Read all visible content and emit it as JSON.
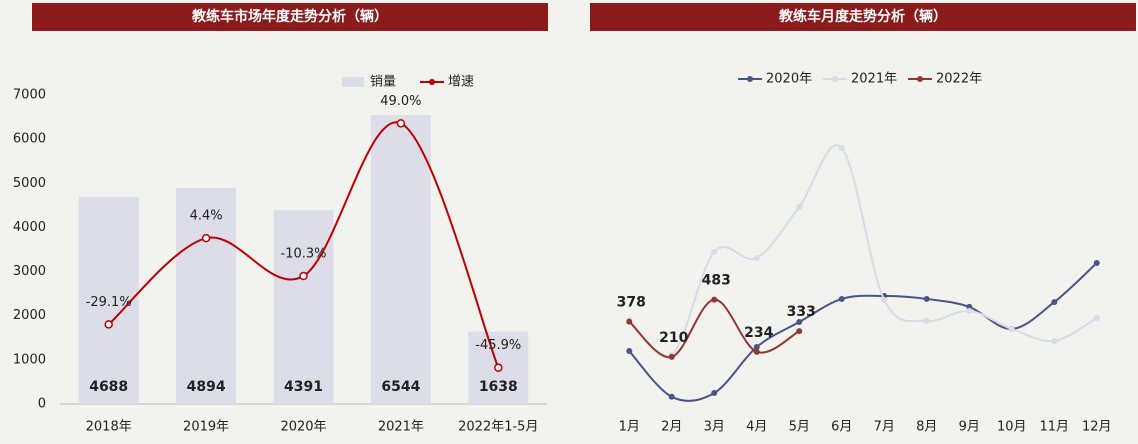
{
  "chart_data": [
    {
      "type": "bar_line",
      "title": "教练车市场年度走势分析（辆）",
      "categories": [
        "2018年",
        "2019年",
        "2020年",
        "2021年",
        "2022年1-5月"
      ],
      "series": [
        {
          "name": "销量",
          "type": "bar",
          "color": "#dcdde8",
          "values": [
            4688,
            4894,
            4391,
            6544,
            1638
          ]
        },
        {
          "name": "增速",
          "type": "line",
          "axis": "y2",
          "color": "#c00000",
          "values": [
            -29.1,
            4.4,
            -10.3,
            49.0,
            -45.9
          ],
          "value_labels": [
            "-29.1%",
            "4.4%",
            "-10.3%",
            "49.0%",
            "-45.9%"
          ]
        }
      ],
      "ylim": [
        0,
        7000
      ],
      "yticks": [
        0,
        1000,
        2000,
        3000,
        4000,
        5000,
        6000,
        7000
      ],
      "y2lim": [
        -60,
        60
      ]
    },
    {
      "type": "line",
      "title": "教练车月度走势分析（辆）",
      "categories": [
        "1月",
        "2月",
        "3月",
        "4月",
        "5月",
        "6月",
        "7月",
        "8月",
        "9月",
        "10月",
        "11月",
        "12月"
      ],
      "series": [
        {
          "name": "2020年",
          "color": "#4a5587",
          "values": [
            238,
            20,
            38,
            257,
            376,
            486,
            500,
            486,
            448,
            343,
            471,
            657
          ]
        },
        {
          "name": "2021年",
          "color": "#d9dbe6",
          "values": [
            386,
            219,
            710,
            681,
            924,
            1205,
            481,
            381,
            429,
            343,
            286,
            395
          ]
        },
        {
          "name": "2022年",
          "color": "#963634",
          "values": [
            378,
            210,
            483,
            234,
            333,
            null,
            null,
            null,
            null,
            null,
            null,
            null
          ],
          "labels_shown": true
        }
      ],
      "ylim": [
        0,
        1600
      ]
    }
  ]
}
